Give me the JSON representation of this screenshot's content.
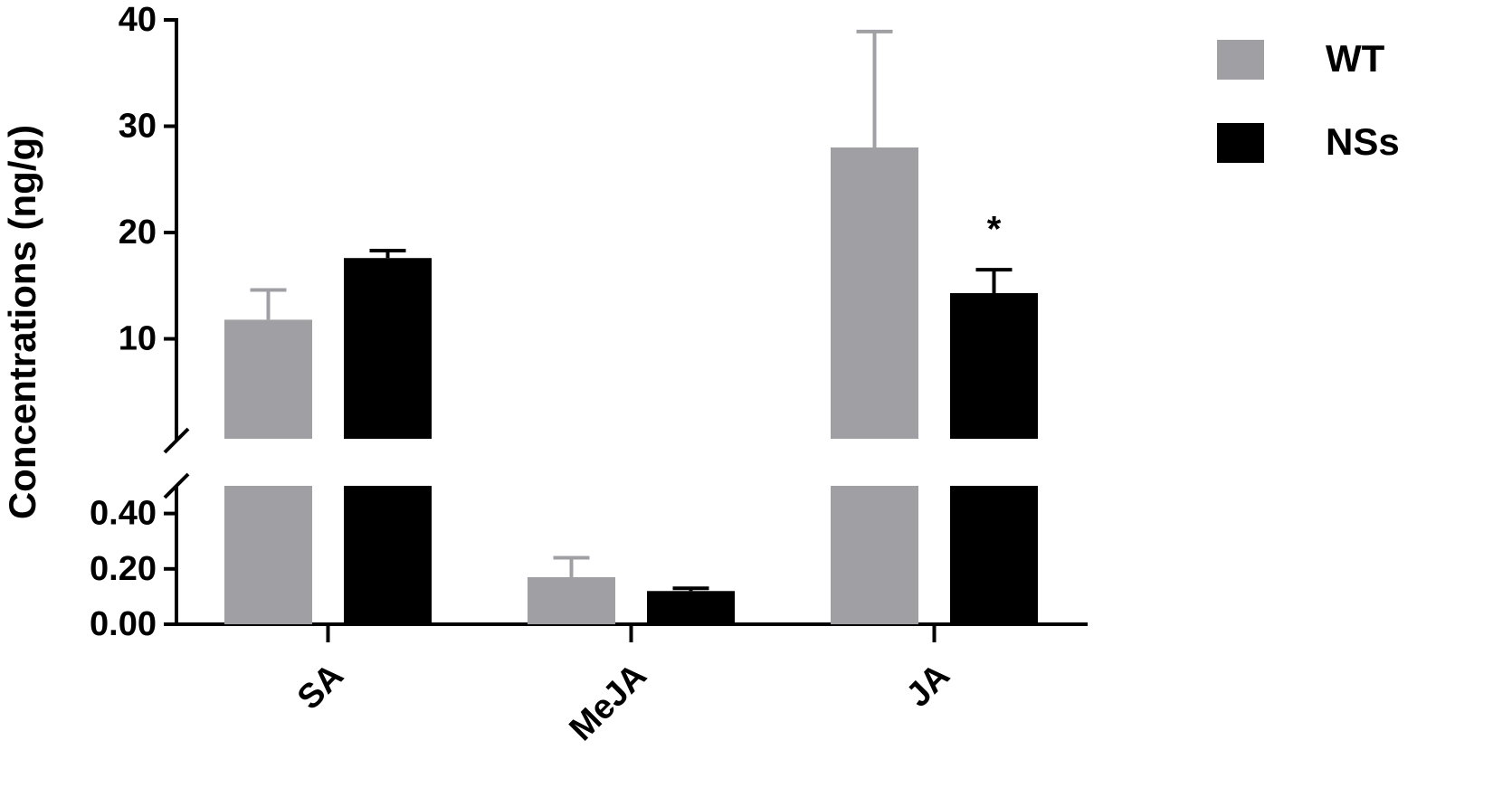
{
  "chart_data": {
    "type": "bar",
    "y_axis_label": "Concentrations (ng/g)",
    "categories": [
      "SA",
      "MeJA",
      "JA"
    ],
    "series": [
      {
        "name": "WT",
        "color": "#a0a0a4",
        "values": [
          11.8,
          0.17,
          28.0
        ],
        "errors": [
          2.8,
          0.07,
          10.9
        ]
      },
      {
        "name": "NSs",
        "color": "#000000",
        "values": [
          17.6,
          0.12,
          14.3
        ],
        "errors": [
          0.7,
          0.01,
          2.2
        ]
      }
    ],
    "axis_segments": [
      {
        "ylim": [
          0,
          0.5
        ],
        "yticks": [
          {
            "value": 0,
            "label": "0.00"
          },
          {
            "value": 0.2,
            "label": "0.20"
          },
          {
            "value": 0.4,
            "label": "0.40"
          }
        ]
      },
      {
        "ylim": [
          0.6,
          40
        ],
        "yticks": [
          10,
          20,
          30,
          40
        ]
      }
    ],
    "annotations": [
      {
        "text": "*",
        "category": "JA",
        "series": "NSs"
      }
    ],
    "legend": "top-right"
  }
}
